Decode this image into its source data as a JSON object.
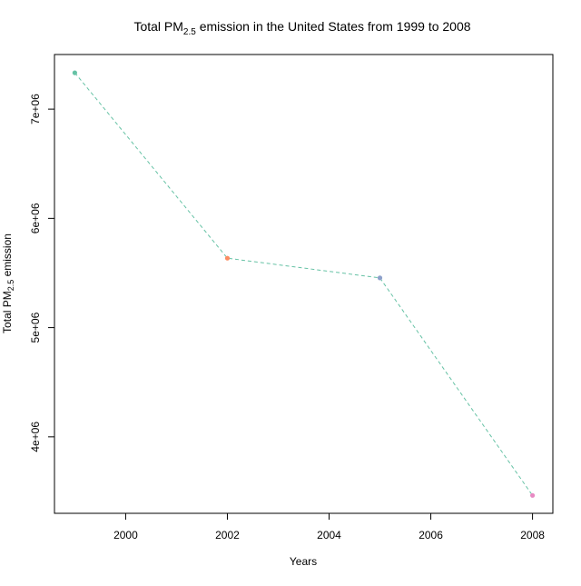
{
  "chart_data": {
    "type": "line",
    "title": {
      "prefix": "Total PM",
      "subscript": "2.5",
      "suffix": " emission in the United States from 1999 to 2008"
    },
    "xlabel": "Years",
    "ylabel": {
      "prefix": "Total PM",
      "subscript": "2.5",
      "suffix": " emission"
    },
    "x": [
      1999,
      2002,
      2005,
      2008
    ],
    "series": [
      {
        "values": [
          7332967,
          5635780,
          5454703,
          3464206
        ],
        "point_colors": [
          "#66c2a5",
          "#fc8d62",
          "#8da0cb",
          "#e78ac3"
        ],
        "line_color": "#66c2a5",
        "line_style": "dashed"
      }
    ],
    "xlim": [
      1998.6,
      2008.4
    ],
    "ylim": [
      3300000,
      7500000
    ],
    "x_ticks": [
      2000,
      2002,
      2004,
      2006,
      2008
    ],
    "x_tick_labels": [
      "2000",
      "2002",
      "2004",
      "2006",
      "2008"
    ],
    "y_ticks": [
      4000000,
      5000000,
      6000000,
      7000000
    ],
    "y_tick_labels": [
      "4e+06",
      "5e+06",
      "6e+06",
      "7e+06"
    ],
    "grid": false,
    "legend": "none"
  }
}
